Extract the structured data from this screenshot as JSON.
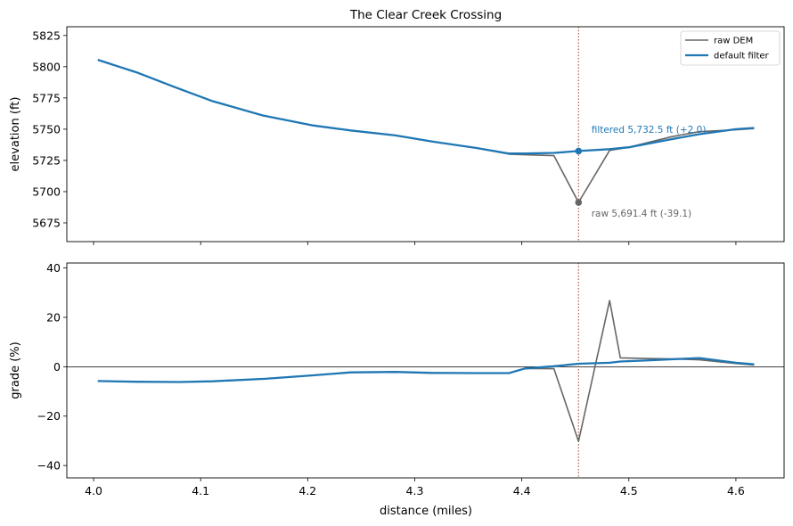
{
  "chart_data": {
    "title": "The Clear Creek Crossing",
    "xlabel": "distance (miles)",
    "xlim": [
      3.975,
      4.645
    ],
    "xticks": [
      4.0,
      4.1,
      4.2,
      4.3,
      4.4,
      4.5,
      4.6
    ],
    "xtick_labels": [
      "4.0",
      "4.1",
      "4.2",
      "4.3",
      "4.4",
      "4.5",
      "4.6"
    ],
    "marker_x": 4.453,
    "colors": {
      "raw": "#666666",
      "filtered": "#1f77b4",
      "marker": "#b0533c"
    },
    "legend": {
      "placement": "top-right",
      "entries": [
        "raw DEM",
        "default filter"
      ]
    },
    "panels": [
      {
        "type": "line",
        "ylabel": "elevation (ft)",
        "ylim": [
          5660,
          5832
        ],
        "yticks": [
          5675,
          5700,
          5725,
          5750,
          5775,
          5800,
          5825
        ],
        "ytick_labels": [
          "5675",
          "5700",
          "5725",
          "5750",
          "5775",
          "5800",
          "5825"
        ],
        "series": [
          {
            "name": "raw DEM",
            "x": [
              4.004,
              4.04,
              4.075,
              4.111,
              4.158,
              4.205,
              4.24,
              4.282,
              4.317,
              4.357,
              4.388,
              4.403,
              4.43,
              4.453,
              4.482,
              4.5,
              4.54,
              4.566,
              4.6,
              4.617
            ],
            "y": [
              5805.5,
              5795.5,
              5784.0,
              5772.5,
              5761.0,
              5753.0,
              5749.0,
              5745.0,
              5740.0,
              5735.0,
              5730.0,
              5729.5,
              5728.8,
              5691.4,
              5733.0,
              5735.5,
              5744.0,
              5748.0,
              5749.5,
              5750.5
            ]
          },
          {
            "name": "default filter",
            "x": [
              4.004,
              4.04,
              4.075,
              4.111,
              4.158,
              4.205,
              4.24,
              4.282,
              4.317,
              4.357,
              4.388,
              4.403,
              4.43,
              4.453,
              4.482,
              4.5,
              4.54,
              4.566,
              4.6,
              4.617
            ],
            "y": [
              5805.5,
              5795.5,
              5784.0,
              5772.5,
              5761.0,
              5753.0,
              5749.0,
              5745.0,
              5740.0,
              5735.0,
              5730.5,
              5730.5,
              5731.0,
              5732.5,
              5734.0,
              5735.5,
              5742.0,
              5746.0,
              5750.0,
              5751.0
            ]
          }
        ],
        "points": [
          {
            "series": "raw DEM",
            "x": 4.453,
            "y": 5691.4
          },
          {
            "series": "default filter",
            "x": 4.453,
            "y": 5732.5
          }
        ],
        "annotations": [
          {
            "text": "filtered 5,732.5 ft (+2.0)",
            "series": "default filter",
            "x": 4.465,
            "y": 5747.0
          },
          {
            "text": "raw 5,691.4 ft (-39.1)",
            "series": "raw DEM",
            "x": 4.465,
            "y": 5680.0
          }
        ]
      },
      {
        "type": "line",
        "ylabel": "grade (%)",
        "ylim": [
          -45,
          42
        ],
        "yticks": [
          -40,
          -20,
          0,
          20,
          40
        ],
        "ytick_labels": [
          "−40",
          "−20",
          "0",
          "20",
          "40"
        ],
        "zero_line": true,
        "series": [
          {
            "name": "raw DEM",
            "x": [
              4.004,
              4.04,
              4.08,
              4.111,
              4.16,
              4.205,
              4.24,
              4.282,
              4.317,
              4.357,
              4.388,
              4.403,
              4.43,
              4.453,
              4.482,
              4.492,
              4.52,
              4.54,
              4.566,
              4.6,
              4.617
            ],
            "y": [
              -5.8,
              -6.1,
              -6.2,
              -5.9,
              -4.9,
              -3.5,
              -2.3,
              -2.1,
              -2.5,
              -2.6,
              -2.6,
              -0.7,
              -0.8,
              -30.2,
              26.8,
              3.6,
              3.3,
              3.2,
              2.8,
              1.3,
              0.7
            ]
          },
          {
            "name": "default filter",
            "x": [
              4.004,
              4.04,
              4.08,
              4.111,
              4.16,
              4.205,
              4.24,
              4.282,
              4.317,
              4.357,
              4.388,
              4.403,
              4.43,
              4.453,
              4.482,
              4.492,
              4.52,
              4.54,
              4.566,
              4.6,
              4.617
            ],
            "y": [
              -5.8,
              -6.1,
              -6.2,
              -5.9,
              -4.9,
              -3.5,
              -2.3,
              -2.1,
              -2.5,
              -2.6,
              -2.6,
              -0.7,
              0.2,
              1.2,
              1.6,
              2.1,
              2.6,
              3.0,
              3.5,
              1.6,
              1.0
            ]
          }
        ]
      }
    ]
  }
}
